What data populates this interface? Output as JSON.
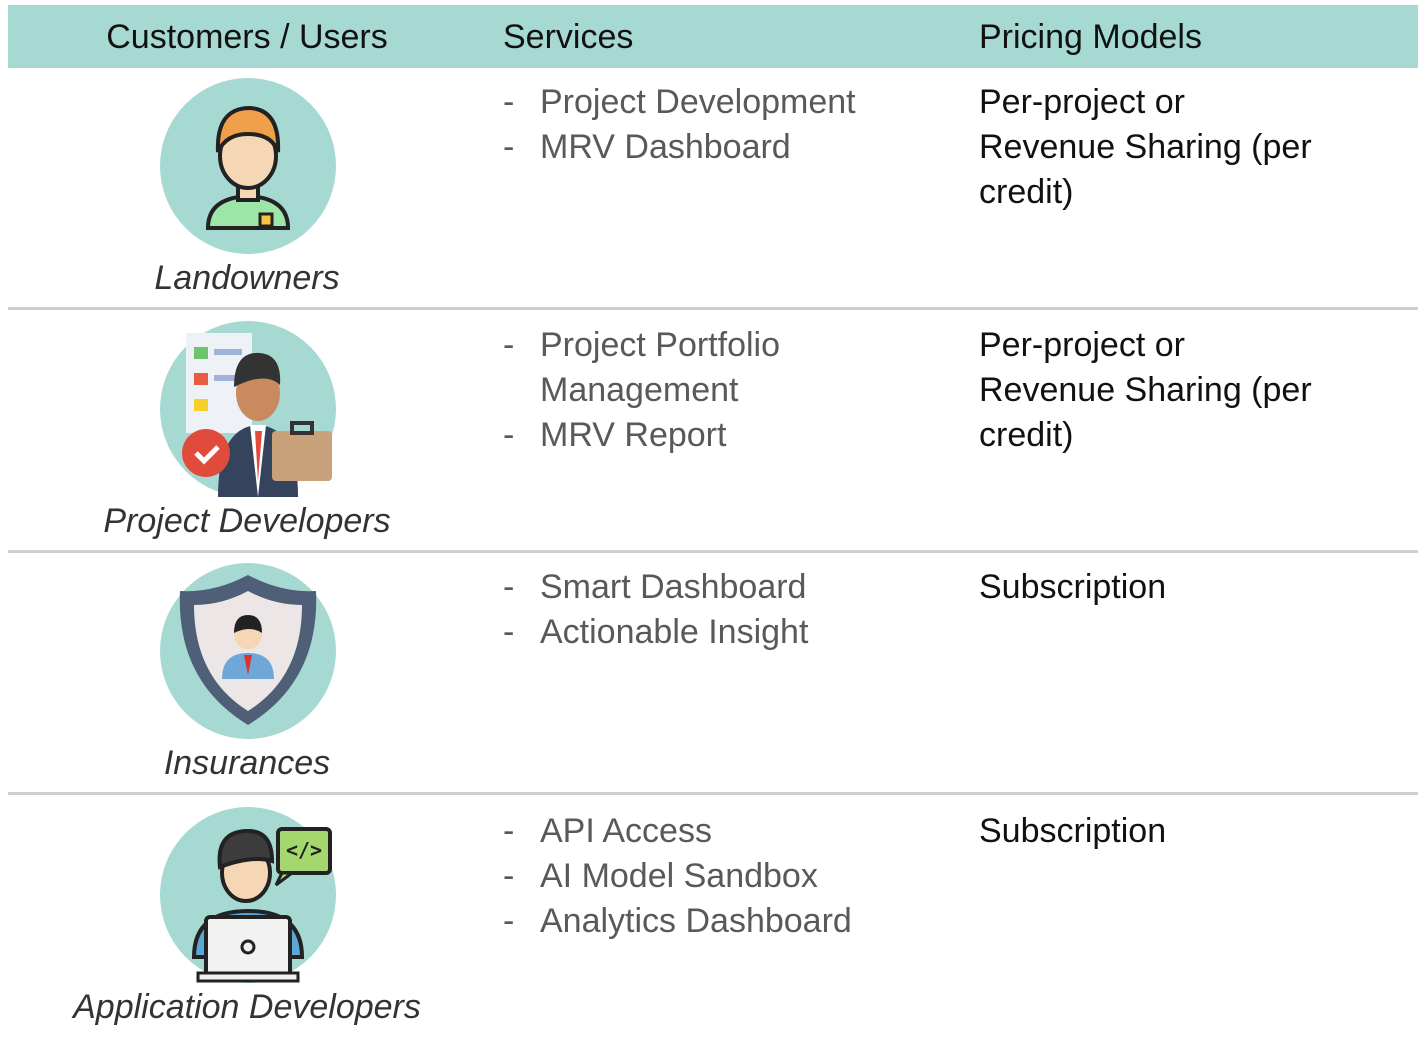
{
  "header": {
    "columns": [
      "Customers / Users",
      "Services",
      "Pricing Models"
    ]
  },
  "table": {
    "rows": [
      {
        "customer": "Landowners",
        "services": [
          "Project Development",
          "MRV Dashboard"
        ],
        "pricing": [
          "Per-project or",
          "Revenue Sharing (per",
          "credit)"
        ]
      },
      {
        "customer": "Project Developers",
        "services": [
          "Project Portfolio Management",
          "MRV Report"
        ],
        "pricing": [
          "Per-project or",
          "Revenue Sharing (per",
          "credit)"
        ]
      },
      {
        "customer": "Insurances",
        "services": [
          "Smart Dashboard",
          "Actionable Insight"
        ],
        "pricing": [
          "Subscription"
        ]
      },
      {
        "customer": "Application Developers",
        "services": [
          "API Access",
          "AI Model Sandbox",
          "Analytics Dashboard"
        ],
        "pricing": [
          "Subscription"
        ]
      }
    ]
  },
  "list_marker": "-"
}
